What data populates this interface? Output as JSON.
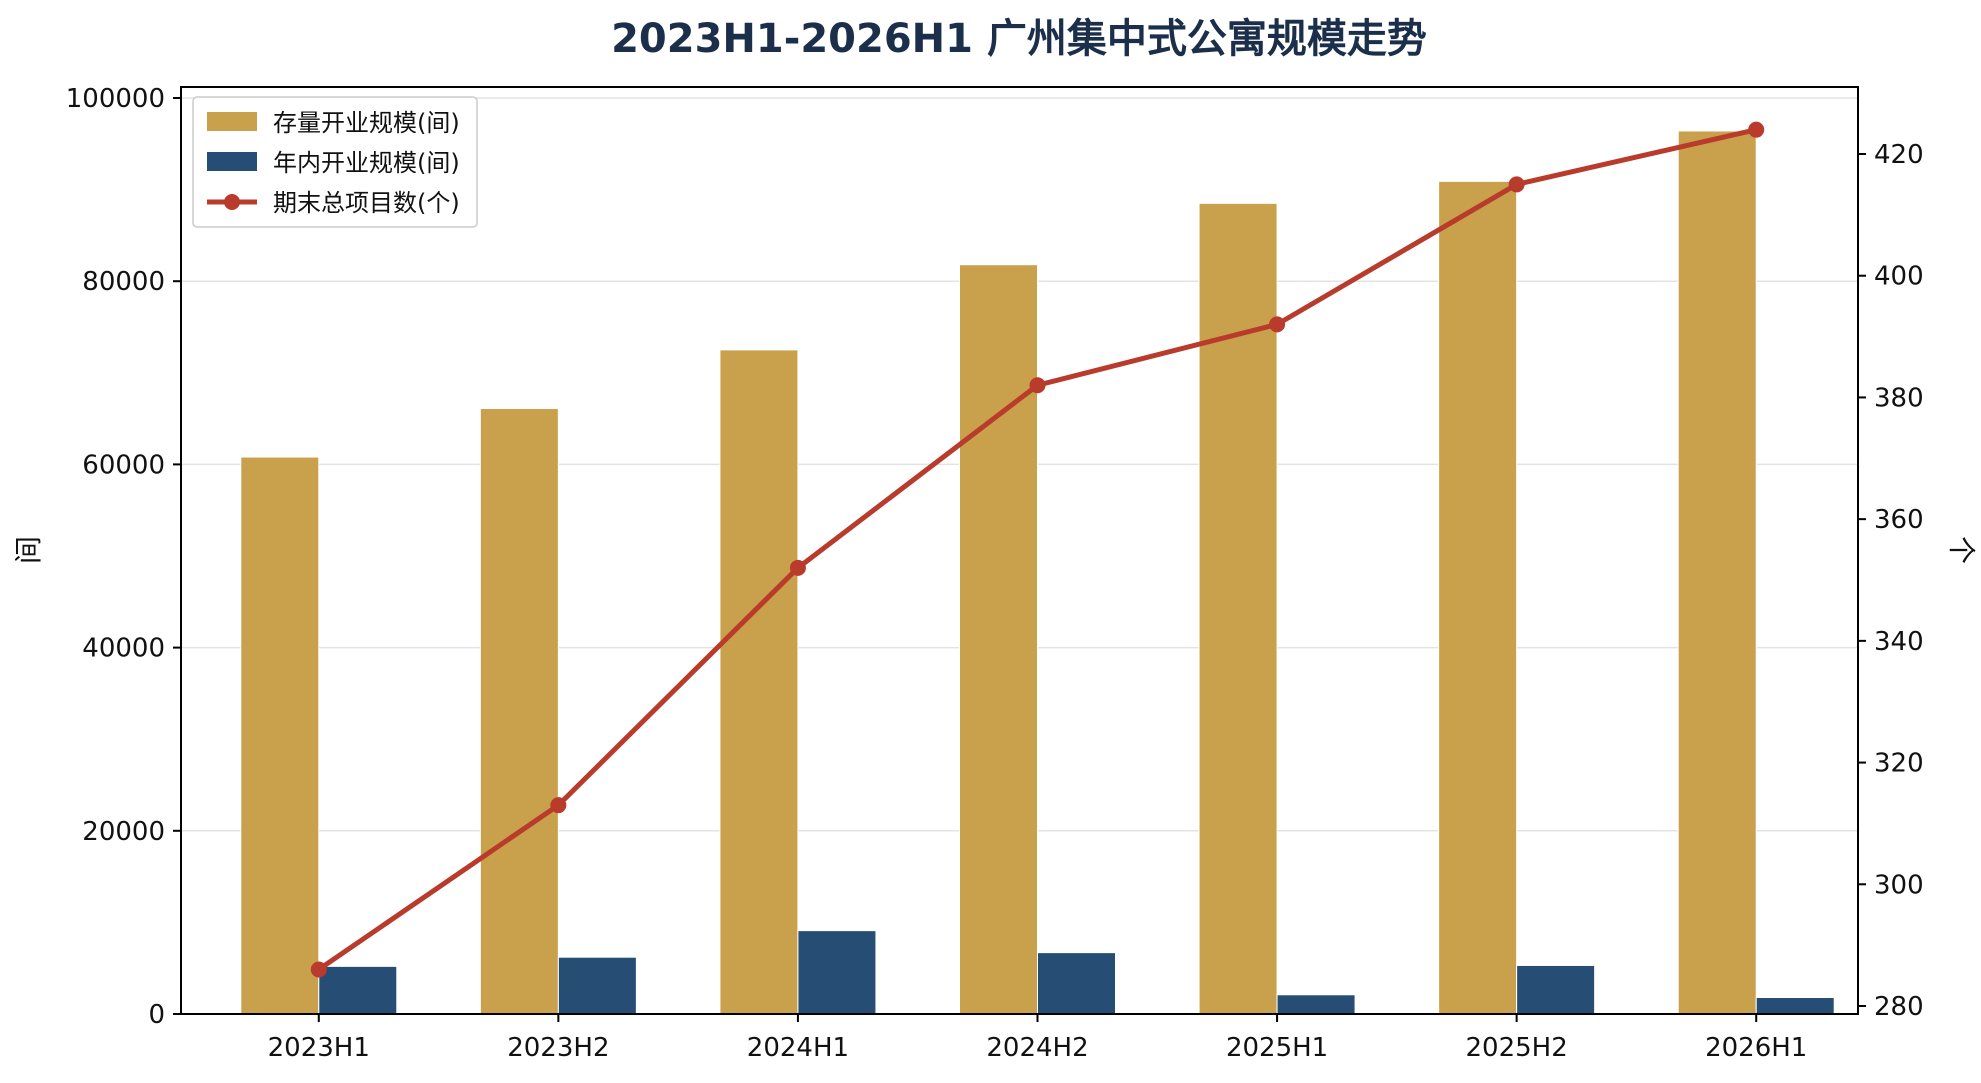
{
  "chart_data": {
    "type": "bar",
    "title": "2023H1-2026H1 广州集中式公寓规模走势",
    "categories": [
      "2023H1",
      "2023H2",
      "2024H1",
      "2024H2",
      "2025H1",
      "2025H2",
      "2026H1"
    ],
    "series": [
      {
        "name": "存量开业规模(间)",
        "type": "bar",
        "axis": "left",
        "color": "#c9a04b",
        "values": [
          60800,
          66100,
          72500,
          81800,
          88500,
          90900,
          96400
        ]
      },
      {
        "name": "年内开业规模(间)",
        "type": "bar",
        "axis": "left",
        "color": "#264d73",
        "values": [
          5200,
          6200,
          9100,
          6700,
          2100,
          5300,
          1800
        ]
      },
      {
        "name": "期末总项目数(个)",
        "type": "line",
        "axis": "right",
        "color": "#b83b2c",
        "values": [
          286,
          313,
          352,
          382,
          392,
          415,
          424
        ]
      }
    ],
    "ylabel": "间",
    "y2label": "个",
    "ylim": [
      0,
      100000
    ],
    "y2lim": [
      280,
      430
    ],
    "yticks": [
      "0",
      "20000",
      "40000",
      "60000",
      "80000",
      "100000"
    ],
    "y2ticks": [
      "280",
      "300",
      "320",
      "340",
      "360",
      "380",
      "400",
      "420"
    ],
    "grid": true,
    "legend_position": "top-left"
  }
}
